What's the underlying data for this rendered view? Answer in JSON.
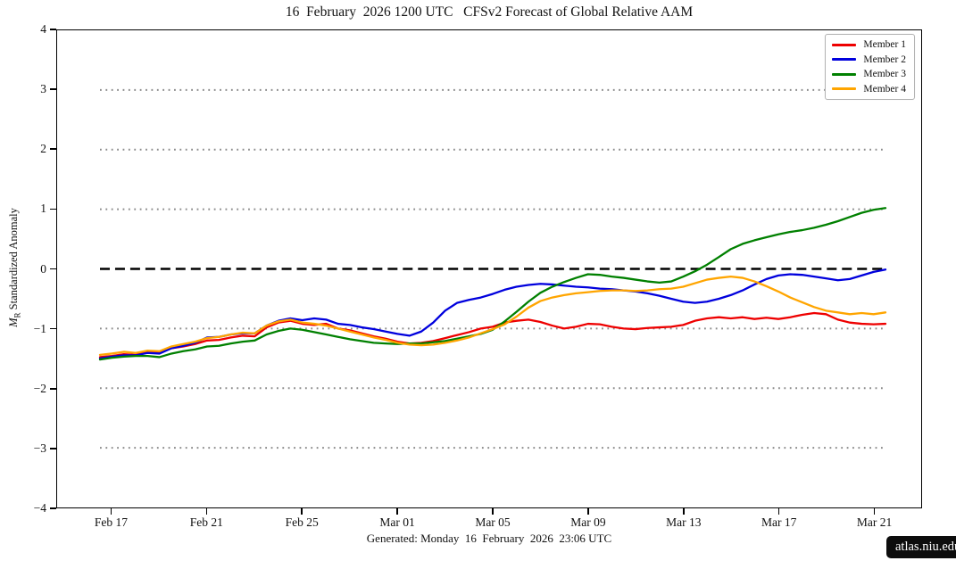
{
  "page": {
    "title": "16  February  2026 1200 UTC   CFSv2 Forecast of Global Relative AAM",
    "footer": "Generated: Monday  16  February  2026  23:06 UTC",
    "badge": "atlas.niu.edu",
    "background": "#ffffff"
  },
  "chart_data": {
    "type": "line",
    "title": "16  February  2026 1200 UTC   CFSv2 Forecast of Global Relative AAM",
    "xlabel": "",
    "ylabel": {
      "var": "M",
      "sub": "R",
      "rest": " Standardized Anomaly"
    },
    "ylim": [
      -4,
      4
    ],
    "xlim_days": [
      -1.8,
      34.5
    ],
    "grid": {
      "dotted_values": [
        3,
        2,
        1,
        -1,
        -2,
        -3
      ],
      "dotted_color": "#8a8a8a",
      "zero_line_value": 0,
      "zero_line_color": "#000000",
      "span_days": [
        0,
        33
      ]
    },
    "legend_position": "top-right",
    "y_ticks": [
      {
        "v": 4,
        "label": "4"
      },
      {
        "v": 3,
        "label": "3"
      },
      {
        "v": 2,
        "label": "2"
      },
      {
        "v": 1,
        "label": "1"
      },
      {
        "v": 0,
        "label": "0"
      },
      {
        "v": -1,
        "label": "−1"
      },
      {
        "v": -2,
        "label": "−2"
      },
      {
        "v": -3,
        "label": "−3"
      },
      {
        "v": -4,
        "label": "−4"
      }
    ],
    "x_ticks": [
      {
        "t": 0.5,
        "label": "Feb 17"
      },
      {
        "t": 4.5,
        "label": "Feb 21"
      },
      {
        "t": 8.5,
        "label": "Feb 25"
      },
      {
        "t": 12.5,
        "label": "Mar 01"
      },
      {
        "t": 16.5,
        "label": "Mar 05"
      },
      {
        "t": 20.5,
        "label": "Mar 09"
      },
      {
        "t": 24.5,
        "label": "Mar 13"
      },
      {
        "t": 28.5,
        "label": "Mar 17"
      },
      {
        "t": 32.5,
        "label": "Mar 21"
      }
    ],
    "x_units": "days since forecast start (16 Feb 2026 1200 UTC)",
    "series": [
      {
        "name": "Member 1",
        "color": "#ee0000",
        "points": [
          [
            0,
            -1.48
          ],
          [
            0.5,
            -1.46
          ],
          [
            1,
            -1.43
          ],
          [
            1.5,
            -1.44
          ],
          [
            2,
            -1.4
          ],
          [
            2.5,
            -1.41
          ],
          [
            3,
            -1.33
          ],
          [
            3.5,
            -1.3
          ],
          [
            4,
            -1.26
          ],
          [
            4.5,
            -1.2
          ],
          [
            5,
            -1.19
          ],
          [
            5.5,
            -1.15
          ],
          [
            6,
            -1.12
          ],
          [
            6.5,
            -1.13
          ],
          [
            7,
            -0.98
          ],
          [
            7.5,
            -0.9
          ],
          [
            8,
            -0.87
          ],
          [
            8.5,
            -0.92
          ],
          [
            9,
            -0.94
          ],
          [
            9.5,
            -0.92
          ],
          [
            10,
            -1.0
          ],
          [
            10.5,
            -1.03
          ],
          [
            11,
            -1.08
          ],
          [
            11.5,
            -1.13
          ],
          [
            12,
            -1.17
          ],
          [
            12.5,
            -1.22
          ],
          [
            13,
            -1.25
          ],
          [
            13.5,
            -1.24
          ],
          [
            14,
            -1.21
          ],
          [
            14.5,
            -1.16
          ],
          [
            15,
            -1.11
          ],
          [
            15.5,
            -1.06
          ],
          [
            16,
            -1.0
          ],
          [
            16.5,
            -0.97
          ],
          [
            17,
            -0.9
          ],
          [
            17.5,
            -0.87
          ],
          [
            18,
            -0.85
          ],
          [
            18.5,
            -0.89
          ],
          [
            19,
            -0.95
          ],
          [
            19.5,
            -1.0
          ],
          [
            20,
            -0.97
          ],
          [
            20.5,
            -0.92
          ],
          [
            21,
            -0.93
          ],
          [
            21.5,
            -0.97
          ],
          [
            22,
            -1.0
          ],
          [
            22.5,
            -1.01
          ],
          [
            23,
            -0.99
          ],
          [
            23.5,
            -0.98
          ],
          [
            24,
            -0.97
          ],
          [
            24.5,
            -0.94
          ],
          [
            25,
            -0.87
          ],
          [
            25.5,
            -0.83
          ],
          [
            26,
            -0.81
          ],
          [
            26.5,
            -0.83
          ],
          [
            27,
            -0.81
          ],
          [
            27.5,
            -0.84
          ],
          [
            28,
            -0.82
          ],
          [
            28.5,
            -0.84
          ],
          [
            29,
            -0.81
          ],
          [
            29.5,
            -0.77
          ],
          [
            30,
            -0.74
          ],
          [
            30.5,
            -0.76
          ],
          [
            31,
            -0.85
          ],
          [
            31.5,
            -0.9
          ],
          [
            32,
            -0.92
          ],
          [
            32.5,
            -0.93
          ],
          [
            33,
            -0.92
          ]
        ]
      },
      {
        "name": "Member 2",
        "color": "#0000dd",
        "points": [
          [
            0,
            -1.5
          ],
          [
            0.5,
            -1.47
          ],
          [
            1,
            -1.45
          ],
          [
            1.5,
            -1.45
          ],
          [
            2,
            -1.41
          ],
          [
            2.5,
            -1.42
          ],
          [
            3,
            -1.33
          ],
          [
            3.5,
            -1.29
          ],
          [
            4,
            -1.24
          ],
          [
            4.5,
            -1.15
          ],
          [
            5,
            -1.14
          ],
          [
            5.5,
            -1.1
          ],
          [
            6,
            -1.08
          ],
          [
            6.5,
            -1.08
          ],
          [
            7,
            -0.95
          ],
          [
            7.5,
            -0.87
          ],
          [
            8,
            -0.83
          ],
          [
            8.5,
            -0.86
          ],
          [
            9,
            -0.83
          ],
          [
            9.5,
            -0.85
          ],
          [
            10,
            -0.92
          ],
          [
            10.5,
            -0.94
          ],
          [
            11,
            -0.98
          ],
          [
            11.5,
            -1.01
          ],
          [
            12,
            -1.05
          ],
          [
            12.5,
            -1.09
          ],
          [
            13,
            -1.12
          ],
          [
            13.5,
            -1.05
          ],
          [
            14,
            -0.9
          ],
          [
            14.5,
            -0.7
          ],
          [
            15,
            -0.57
          ],
          [
            15.5,
            -0.52
          ],
          [
            16,
            -0.48
          ],
          [
            16.5,
            -0.42
          ],
          [
            17,
            -0.35
          ],
          [
            17.5,
            -0.3
          ],
          [
            18,
            -0.27
          ],
          [
            18.5,
            -0.25
          ],
          [
            19,
            -0.26
          ],
          [
            19.5,
            -0.28
          ],
          [
            20,
            -0.3
          ],
          [
            20.5,
            -0.31
          ],
          [
            21,
            -0.33
          ],
          [
            21.5,
            -0.34
          ],
          [
            22,
            -0.36
          ],
          [
            22.5,
            -0.38
          ],
          [
            23,
            -0.41
          ],
          [
            23.5,
            -0.45
          ],
          [
            24,
            -0.5
          ],
          [
            24.5,
            -0.55
          ],
          [
            25,
            -0.57
          ],
          [
            25.5,
            -0.55
          ],
          [
            26,
            -0.5
          ],
          [
            26.5,
            -0.44
          ],
          [
            27,
            -0.36
          ],
          [
            27.5,
            -0.26
          ],
          [
            28,
            -0.17
          ],
          [
            28.5,
            -0.11
          ],
          [
            29,
            -0.09
          ],
          [
            29.5,
            -0.1
          ],
          [
            30,
            -0.13
          ],
          [
            30.5,
            -0.16
          ],
          [
            31,
            -0.19
          ],
          [
            31.5,
            -0.17
          ],
          [
            32,
            -0.11
          ],
          [
            32.5,
            -0.05
          ],
          [
            33,
            -0.01
          ]
        ]
      },
      {
        "name": "Member 3",
        "color": "#008000",
        "points": [
          [
            0,
            -1.52
          ],
          [
            0.5,
            -1.49
          ],
          [
            1,
            -1.47
          ],
          [
            1.5,
            -1.46
          ],
          [
            2,
            -1.46
          ],
          [
            2.5,
            -1.48
          ],
          [
            3,
            -1.42
          ],
          [
            3.5,
            -1.38
          ],
          [
            4,
            -1.35
          ],
          [
            4.5,
            -1.3
          ],
          [
            5,
            -1.29
          ],
          [
            5.5,
            -1.25
          ],
          [
            6,
            -1.22
          ],
          [
            6.5,
            -1.2
          ],
          [
            7,
            -1.1
          ],
          [
            7.5,
            -1.04
          ],
          [
            8,
            -1.0
          ],
          [
            8.5,
            -1.02
          ],
          [
            9,
            -1.06
          ],
          [
            9.5,
            -1.1
          ],
          [
            10,
            -1.14
          ],
          [
            10.5,
            -1.18
          ],
          [
            11,
            -1.21
          ],
          [
            11.5,
            -1.24
          ],
          [
            12,
            -1.25
          ],
          [
            12.5,
            -1.26
          ],
          [
            13,
            -1.25
          ],
          [
            13.5,
            -1.25
          ],
          [
            14,
            -1.23
          ],
          [
            14.5,
            -1.21
          ],
          [
            15,
            -1.17
          ],
          [
            15.5,
            -1.13
          ],
          [
            16,
            -1.09
          ],
          [
            16.5,
            -1.02
          ],
          [
            17,
            -0.88
          ],
          [
            17.5,
            -0.72
          ],
          [
            18,
            -0.55
          ],
          [
            18.5,
            -0.4
          ],
          [
            19,
            -0.3
          ],
          [
            19.5,
            -0.22
          ],
          [
            20,
            -0.15
          ],
          [
            20.5,
            -0.09
          ],
          [
            21,
            -0.1
          ],
          [
            21.5,
            -0.13
          ],
          [
            22,
            -0.15
          ],
          [
            22.5,
            -0.18
          ],
          [
            23,
            -0.21
          ],
          [
            23.5,
            -0.23
          ],
          [
            24,
            -0.21
          ],
          [
            24.5,
            -0.13
          ],
          [
            25,
            -0.04
          ],
          [
            25.5,
            0.07
          ],
          [
            26,
            0.2
          ],
          [
            26.5,
            0.33
          ],
          [
            27,
            0.42
          ],
          [
            27.5,
            0.48
          ],
          [
            28,
            0.53
          ],
          [
            28.5,
            0.58
          ],
          [
            29,
            0.62
          ],
          [
            29.5,
            0.65
          ],
          [
            30,
            0.69
          ],
          [
            30.5,
            0.74
          ],
          [
            31,
            0.8
          ],
          [
            31.5,
            0.87
          ],
          [
            32,
            0.94
          ],
          [
            32.5,
            0.99
          ],
          [
            33,
            1.02
          ]
        ]
      },
      {
        "name": "Member 4",
        "color": "#ffa500",
        "points": [
          [
            0,
            -1.44
          ],
          [
            0.5,
            -1.42
          ],
          [
            1,
            -1.39
          ],
          [
            1.5,
            -1.41
          ],
          [
            2,
            -1.37
          ],
          [
            2.5,
            -1.38
          ],
          [
            3,
            -1.3
          ],
          [
            3.5,
            -1.26
          ],
          [
            4,
            -1.22
          ],
          [
            4.5,
            -1.16
          ],
          [
            5,
            -1.14
          ],
          [
            5.5,
            -1.1
          ],
          [
            6,
            -1.07
          ],
          [
            6.5,
            -1.08
          ],
          [
            7,
            -0.95
          ],
          [
            7.5,
            -0.88
          ],
          [
            8,
            -0.85
          ],
          [
            8.5,
            -0.9
          ],
          [
            9,
            -0.92
          ],
          [
            9.5,
            -0.95
          ],
          [
            10,
            -1.0
          ],
          [
            10.5,
            -1.05
          ],
          [
            11,
            -1.1
          ],
          [
            11.5,
            -1.15
          ],
          [
            12,
            -1.19
          ],
          [
            12.5,
            -1.24
          ],
          [
            13,
            -1.27
          ],
          [
            13.5,
            -1.28
          ],
          [
            14,
            -1.27
          ],
          [
            14.5,
            -1.24
          ],
          [
            15,
            -1.2
          ],
          [
            15.5,
            -1.15
          ],
          [
            16,
            -1.08
          ],
          [
            16.5,
            -1.01
          ],
          [
            17,
            -0.93
          ],
          [
            17.5,
            -0.8
          ],
          [
            18,
            -0.65
          ],
          [
            18.5,
            -0.54
          ],
          [
            19,
            -0.48
          ],
          [
            19.5,
            -0.44
          ],
          [
            20,
            -0.41
          ],
          [
            20.5,
            -0.39
          ],
          [
            21,
            -0.37
          ],
          [
            21.5,
            -0.36
          ],
          [
            22,
            -0.36
          ],
          [
            22.5,
            -0.37
          ],
          [
            23,
            -0.36
          ],
          [
            23.5,
            -0.34
          ],
          [
            24,
            -0.33
          ],
          [
            24.5,
            -0.3
          ],
          [
            25,
            -0.24
          ],
          [
            25.5,
            -0.18
          ],
          [
            26,
            -0.15
          ],
          [
            26.5,
            -0.13
          ],
          [
            27,
            -0.15
          ],
          [
            27.5,
            -0.21
          ],
          [
            28,
            -0.29
          ],
          [
            28.5,
            -0.38
          ],
          [
            29,
            -0.48
          ],
          [
            29.5,
            -0.56
          ],
          [
            30,
            -0.64
          ],
          [
            30.5,
            -0.7
          ],
          [
            31,
            -0.73
          ],
          [
            31.5,
            -0.76
          ],
          [
            32,
            -0.74
          ],
          [
            32.5,
            -0.76
          ],
          [
            33,
            -0.73
          ]
        ]
      }
    ]
  }
}
